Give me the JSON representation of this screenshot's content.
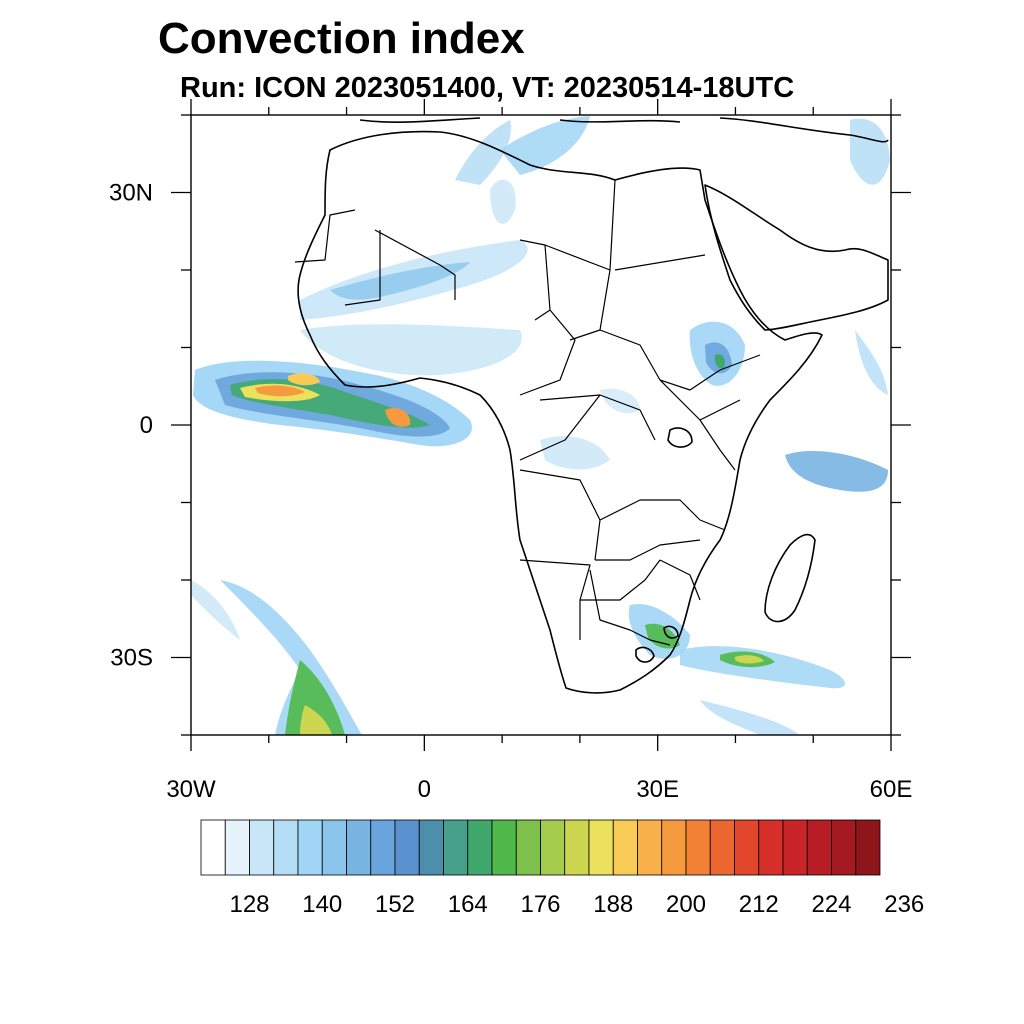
{
  "title": "Convection index",
  "subtitle": "Run: ICON 2023051400,  VT: 20230514-18UTC",
  "map": {
    "lon_range": [
      -30,
      60
    ],
    "lat_range": [
      -40,
      40
    ],
    "lat_ticks": [
      {
        "value": 30,
        "label": "30N"
      },
      {
        "value": 0,
        "label": "0"
      },
      {
        "value": -30,
        "label": "30S"
      }
    ],
    "lon_ticks": [
      {
        "value": -30,
        "label": "30W"
      },
      {
        "value": 0,
        "label": "0"
      },
      {
        "value": 30,
        "label": "30E"
      },
      {
        "value": 60,
        "label": "60E"
      }
    ],
    "minor_lon_step": 10,
    "minor_lat_step": 10
  },
  "colorbar": {
    "colors": [
      "#ffffff",
      "#e6f3fb",
      "#c8e6f7",
      "#b4ddf6",
      "#a0d5f5",
      "#8cc5ec",
      "#78b4e2",
      "#6aa4dc",
      "#5a92cf",
      "#4d8fab",
      "#47a08a",
      "#41a86d",
      "#4fb84a",
      "#7dc14c",
      "#a6cc4e",
      "#cdd651",
      "#ece15c",
      "#f7cb55",
      "#f8b04a",
      "#f69a40",
      "#f38035",
      "#ec6630",
      "#e2472c",
      "#d7302a",
      "#c92528",
      "#b81d25",
      "#a51a20",
      "#8e161b"
    ],
    "labels": [
      "128",
      "140",
      "152",
      "164",
      "176",
      "188",
      "200",
      "212",
      "224",
      "236"
    ]
  },
  "colors": {
    "coast": "#000000",
    "low": "#a0d5f5",
    "mid": "#78b4e2",
    "green": "#4fb84a",
    "yellow": "#ece15c",
    "orange": "#f69a40"
  }
}
